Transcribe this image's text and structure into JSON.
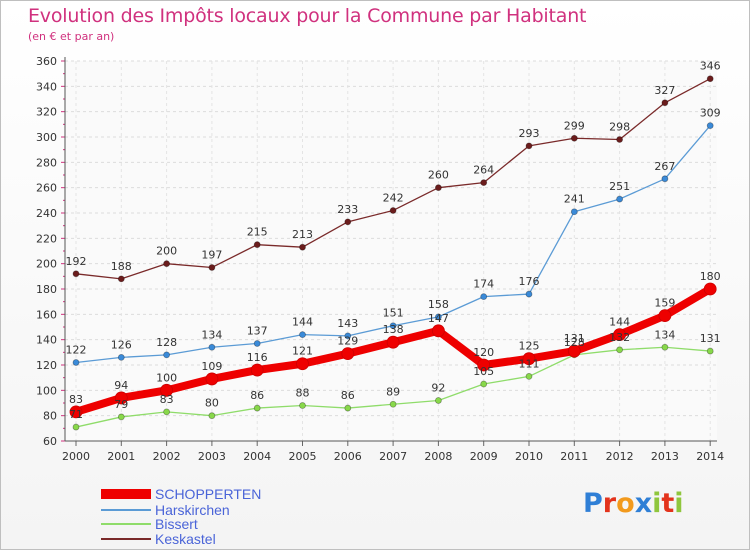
{
  "title": "Evolution des Impôts locaux pour la Commune par Habitant",
  "subtitle": "(en € et par an)",
  "logo": {
    "letters": [
      "P",
      "r",
      "o",
      "x",
      "i",
      "t",
      "i"
    ],
    "colors": [
      "#2f7fd6",
      "#e3331c",
      "#f29a1d",
      "#2f7fd6",
      "#8fc63d",
      "#e3331c",
      "#8fc63d"
    ]
  },
  "chart_data": {
    "type": "line",
    "title": "Evolution des Impôts locaux pour la Commune par Habitant",
    "subtitle": "(en € et par an)",
    "x": [
      "2000",
      "2001",
      "2002",
      "2003",
      "2004",
      "2005",
      "2006",
      "2007",
      "2008",
      "2009",
      "2010",
      "2011",
      "2012",
      "2013",
      "2014"
    ],
    "ylim": [
      60,
      360
    ],
    "yticks": [
      60,
      80,
      100,
      120,
      140,
      160,
      180,
      200,
      220,
      240,
      260,
      280,
      300,
      320,
      340,
      360
    ],
    "grid": true,
    "series": [
      {
        "name": "SCHOPPERTEN",
        "color": "#ee0000",
        "marker": "#ee0000",
        "thick": true,
        "values": [
          83,
          94,
          100,
          109,
          116,
          121,
          129,
          138,
          147,
          120,
          125,
          131,
          144,
          159,
          180
        ],
        "labels": [
          "83",
          "94",
          "100",
          "109",
          "116",
          "121",
          "129",
          "138",
          "147",
          "120",
          "125",
          "131",
          "144",
          "159",
          "180"
        ]
      },
      {
        "name": "Harskirchen",
        "color": "#5b9bd5",
        "marker": "#3a8ad8",
        "values": [
          122,
          126,
          128,
          134,
          137,
          144,
          143,
          151,
          158,
          174,
          176,
          241,
          251,
          267,
          309
        ],
        "labels": [
          "122",
          "126",
          "128",
          "134",
          "137",
          "144",
          "143",
          "151",
          "158",
          "174",
          "176",
          "241",
          "251",
          "267",
          "309"
        ]
      },
      {
        "name": "Bissert",
        "color": "#8fdc6a",
        "marker": "#88d84a",
        "values": [
          71,
          79,
          83,
          80,
          86,
          88,
          86,
          89,
          92,
          105,
          111,
          128,
          132,
          134,
          131
        ],
        "labels": [
          "71",
          "79",
          "83",
          "80",
          "86",
          "88",
          "86",
          "89",
          "92",
          "105",
          "111",
          "128",
          "132",
          "134",
          "131"
        ]
      },
      {
        "name": "Keskastel",
        "color": "#7a2a2a",
        "marker": "#6b1c1c",
        "values": [
          192,
          188,
          200,
          197,
          215,
          213,
          233,
          242,
          260,
          264,
          293,
          299,
          298,
          327,
          346
        ],
        "labels": [
          "192",
          "188",
          "200",
          "197",
          "215",
          "213",
          "233",
          "242",
          "260",
          "264",
          "293",
          "299",
          "298",
          "327",
          "346"
        ]
      }
    ]
  }
}
